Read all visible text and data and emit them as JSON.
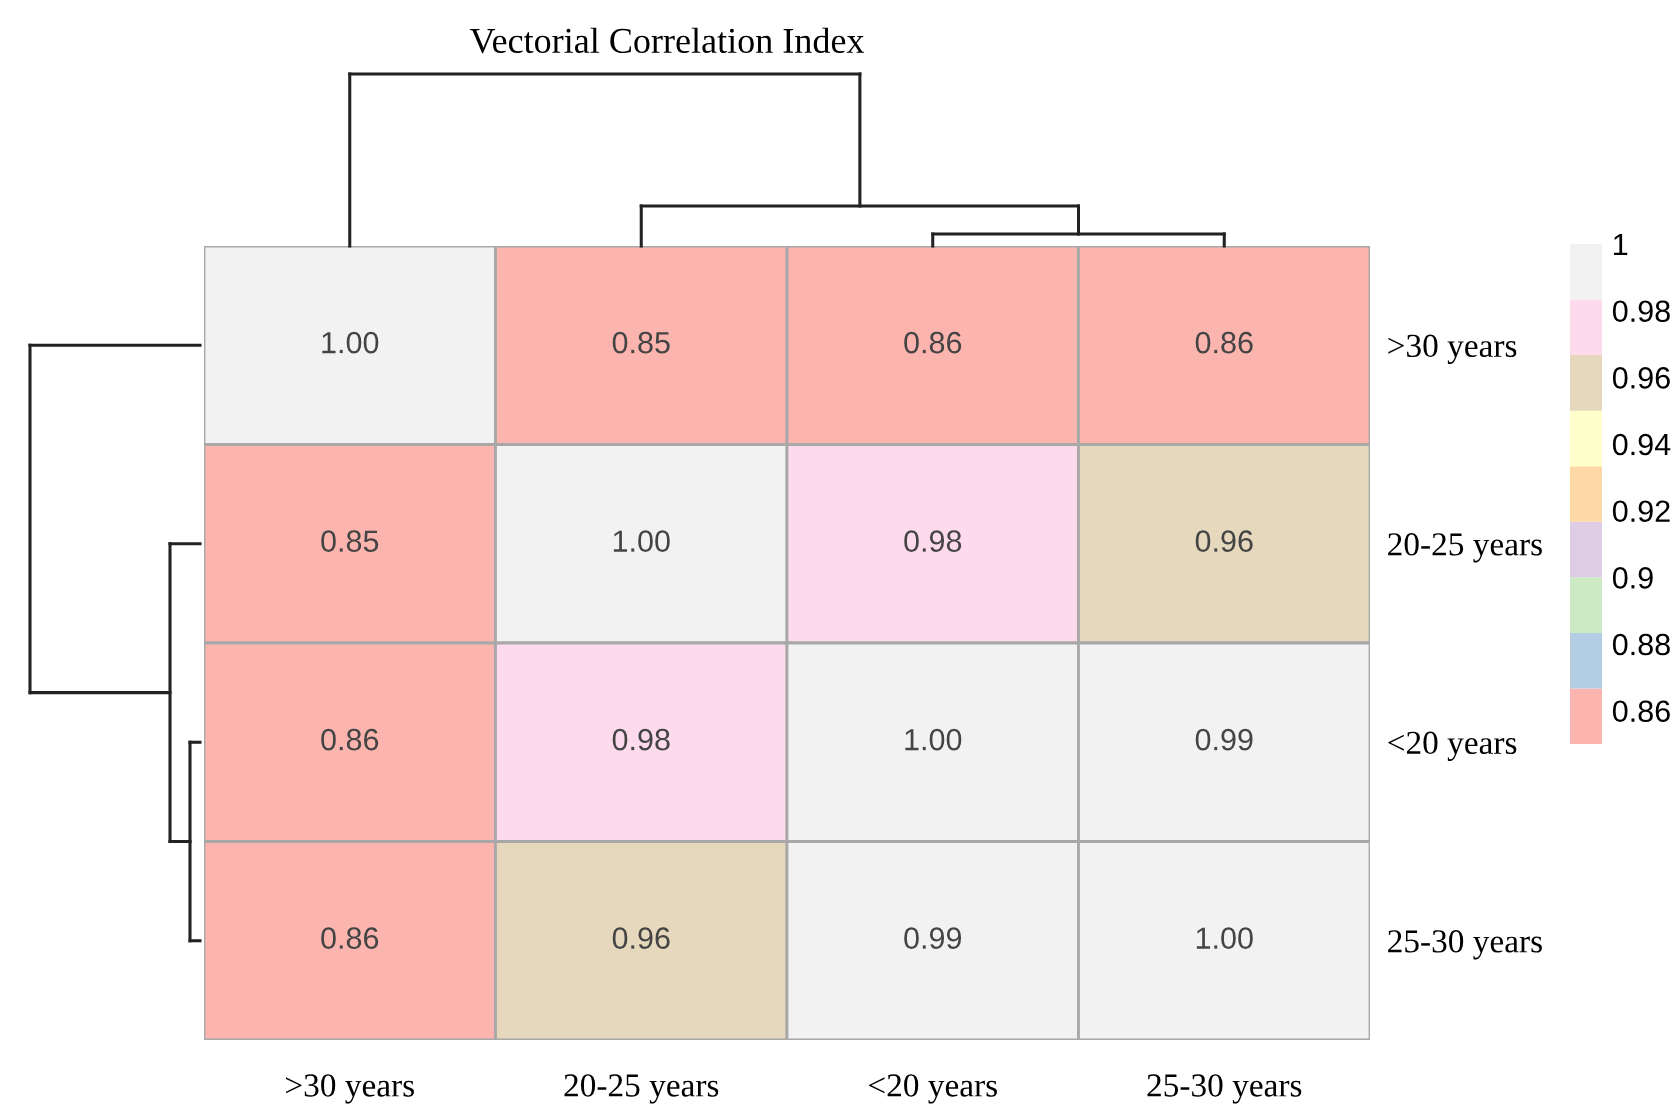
{
  "chart_data": {
    "type": "heatmap",
    "title": "Vectorial Correlation Index",
    "categories": [
      ">30 years",
      "20-25 years",
      "<20 years",
      "25-30 years"
    ],
    "y_categories": [
      ">30 years",
      "20-25 years",
      "<20 years",
      "25-30 years"
    ],
    "cells": [
      [
        1.0,
        0.85,
        0.86,
        0.86
      ],
      [
        0.85,
        1.0,
        0.98,
        0.96
      ],
      [
        0.86,
        0.98,
        1.0,
        0.99
      ],
      [
        0.86,
        0.96,
        0.99,
        1.0
      ]
    ],
    "cell_labels": [
      [
        "1.00",
        "0.85",
        "0.86",
        "0.86"
      ],
      [
        "0.85",
        "1.00",
        "0.98",
        "0.96"
      ],
      [
        "0.86",
        "0.98",
        "1.00",
        "0.99"
      ],
      [
        "0.86",
        "0.96",
        "0.99",
        "1.00"
      ]
    ],
    "colors": [
      "#fbb4ae",
      "#b3cde3",
      "#ccebc5",
      "#decbe4",
      "#fed9a6",
      "#ffffcc",
      "#e5d8bd",
      "#fddaec",
      "#f2f2f2"
    ],
    "clim": [
      0.85,
      1.0
    ],
    "cticks": [
      0.86,
      0.88,
      0.9,
      0.92,
      0.94,
      0.96,
      0.98,
      1
    ]
  }
}
